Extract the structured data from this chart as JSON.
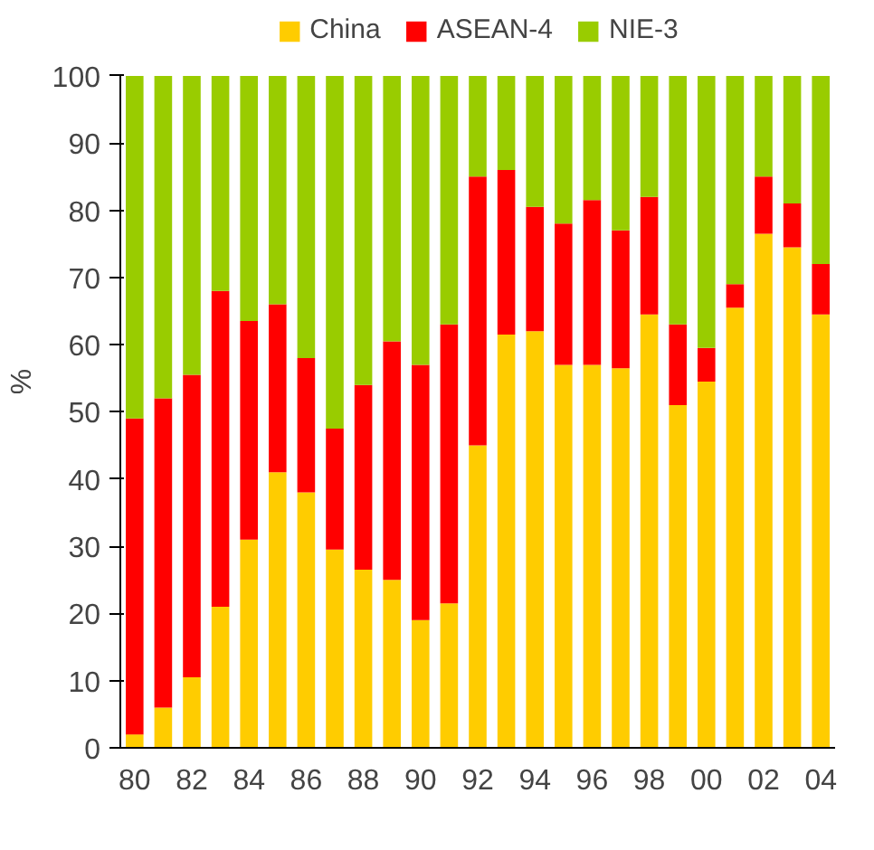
{
  "chart_data": {
    "type": "bar",
    "stacked": true,
    "ylabel": "%",
    "legend": "top",
    "grid": false,
    "categories": [
      "80",
      null,
      "82",
      null,
      "84",
      null,
      "86",
      null,
      "88",
      null,
      "90",
      null,
      "92",
      null,
      "94",
      null,
      "96",
      null,
      "98",
      null,
      "00",
      null,
      "02",
      null,
      "04"
    ],
    "ylim": [
      0,
      100
    ],
    "yticks": [
      0,
      10,
      20,
      30,
      40,
      50,
      60,
      70,
      80,
      90,
      100
    ],
    "series": [
      {
        "name": "China",
        "color": "#ffcc00",
        "values": [
          2,
          6,
          10.5,
          21,
          31,
          41,
          38,
          29.5,
          26.5,
          25,
          19,
          21.5,
          45,
          61.5,
          62,
          57,
          57,
          56.5,
          64.5,
          51,
          54.5,
          65.5,
          76.5,
          74.5,
          64.5
        ]
      },
      {
        "name": "ASEAN-4",
        "color": "#ff0000",
        "values": [
          47,
          46,
          45,
          47,
          32.5,
          25,
          20,
          18,
          27.5,
          35.5,
          38,
          41.5,
          40,
          24.5,
          18.5,
          21,
          24.5,
          20.5,
          17.5,
          12,
          5,
          3.5,
          8.5,
          6.5,
          7.5
        ]
      },
      {
        "name": "NIE-3",
        "color": "#99cc00",
        "values": [
          51,
          48,
          44.5,
          32,
          36.5,
          34,
          42,
          52.5,
          46,
          39.5,
          43,
          37,
          15,
          14,
          19.5,
          22,
          18.5,
          23,
          18,
          37,
          40.5,
          31,
          15,
          19,
          28
        ]
      }
    ]
  }
}
